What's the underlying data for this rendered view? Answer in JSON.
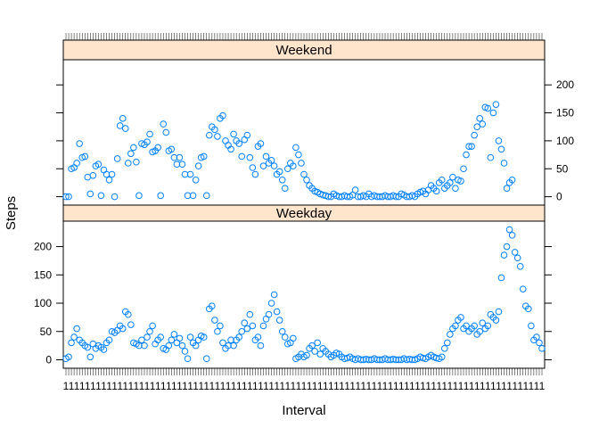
{
  "chart_data": {
    "type": "scatter",
    "xlabel": "Interval",
    "ylabel": "Steps",
    "ylim": [
      -15,
      245
    ],
    "y_ticks": [
      "0",
      "50",
      "100",
      "150",
      "200"
    ],
    "marker_color": "#0080ff",
    "strip_color": "#ffe5cc",
    "panels": [
      {
        "name": "Weekend",
        "y_axis_side": "right",
        "samples": [
          [
            0,
            0
          ],
          [
            1,
            0
          ],
          [
            2,
            50
          ],
          [
            3,
            52
          ],
          [
            4,
            60
          ],
          [
            5,
            95
          ],
          [
            6,
            70
          ],
          [
            7,
            72
          ],
          [
            8,
            35
          ],
          [
            9,
            5
          ],
          [
            10,
            38
          ],
          [
            11,
            55
          ],
          [
            12,
            58
          ],
          [
            13,
            2
          ],
          [
            14,
            48
          ],
          [
            15,
            40
          ],
          [
            16,
            30
          ],
          [
            17,
            40
          ],
          [
            18,
            0
          ],
          [
            19,
            68
          ],
          [
            20,
            127
          ],
          [
            21,
            140
          ],
          [
            22,
            122
          ],
          [
            23,
            60
          ],
          [
            24,
            77
          ],
          [
            25,
            88
          ],
          [
            26,
            62
          ],
          [
            27,
            2
          ],
          [
            28,
            95
          ],
          [
            29,
            93
          ],
          [
            30,
            98
          ],
          [
            31,
            112
          ],
          [
            32,
            80
          ],
          [
            33,
            82
          ],
          [
            34,
            88
          ],
          [
            35,
            2
          ],
          [
            36,
            130
          ],
          [
            37,
            115
          ],
          [
            38,
            82
          ],
          [
            39,
            85
          ],
          [
            40,
            70
          ],
          [
            41,
            58
          ],
          [
            42,
            70
          ],
          [
            43,
            58
          ],
          [
            44,
            40
          ],
          [
            45,
            2
          ],
          [
            46,
            40
          ],
          [
            47,
            2
          ],
          [
            48,
            30
          ],
          [
            49,
            55
          ],
          [
            50,
            70
          ],
          [
            51,
            72
          ],
          [
            52,
            2
          ],
          [
            53,
            110
          ],
          [
            54,
            125
          ],
          [
            55,
            120
          ],
          [
            56,
            108
          ],
          [
            57,
            140
          ],
          [
            58,
            145
          ],
          [
            59,
            100
          ],
          [
            60,
            92
          ],
          [
            61,
            85
          ],
          [
            62,
            112
          ],
          [
            63,
            100
          ],
          [
            64,
            95
          ],
          [
            65,
            72
          ],
          [
            66,
            102
          ],
          [
            67,
            110
          ],
          [
            68,
            70
          ],
          [
            69,
            52
          ],
          [
            70,
            40
          ],
          [
            71,
            90
          ],
          [
            72,
            95
          ],
          [
            73,
            55
          ],
          [
            74,
            72
          ],
          [
            75,
            60
          ],
          [
            76,
            65
          ],
          [
            77,
            55
          ],
          [
            78,
            40
          ],
          [
            79,
            45
          ],
          [
            80,
            30
          ],
          [
            81,
            15
          ],
          [
            82,
            50
          ],
          [
            83,
            60
          ],
          [
            84,
            55
          ],
          [
            85,
            88
          ],
          [
            86,
            75
          ],
          [
            87,
            60
          ],
          [
            88,
            40
          ],
          [
            89,
            30
          ],
          [
            90,
            20
          ],
          [
            91,
            15
          ],
          [
            92,
            10
          ],
          [
            93,
            8
          ],
          [
            94,
            5
          ],
          [
            95,
            3
          ],
          [
            96,
            2
          ],
          [
            97,
            0
          ],
          [
            98,
            0
          ],
          [
            99,
            5
          ],
          [
            100,
            2
          ],
          [
            101,
            0
          ],
          [
            102,
            0
          ],
          [
            103,
            2
          ],
          [
            104,
            0
          ],
          [
            105,
            0
          ],
          [
            106,
            3
          ],
          [
            107,
            12
          ],
          [
            108,
            0
          ],
          [
            109,
            0
          ],
          [
            110,
            2
          ],
          [
            111,
            0
          ],
          [
            112,
            5
          ],
          [
            113,
            0
          ],
          [
            114,
            2
          ],
          [
            115,
            0
          ],
          [
            116,
            0
          ],
          [
            117,
            0
          ],
          [
            118,
            2
          ],
          [
            119,
            0
          ],
          [
            120,
            0
          ],
          [
            121,
            2
          ],
          [
            122,
            0
          ],
          [
            123,
            0
          ],
          [
            124,
            5
          ],
          [
            125,
            3
          ],
          [
            126,
            0
          ],
          [
            127,
            0
          ],
          [
            128,
            2
          ],
          [
            129,
            0
          ],
          [
            130,
            5
          ],
          [
            131,
            8
          ],
          [
            132,
            10
          ],
          [
            133,
            5
          ],
          [
            134,
            12
          ],
          [
            135,
            20
          ],
          [
            136,
            15
          ],
          [
            137,
            10
          ],
          [
            138,
            25
          ],
          [
            139,
            30
          ],
          [
            140,
            15
          ],
          [
            141,
            20
          ],
          [
            142,
            25
          ],
          [
            143,
            35
          ],
          [
            144,
            15
          ],
          [
            145,
            30
          ],
          [
            146,
            28
          ],
          [
            147,
            50
          ],
          [
            148,
            75
          ],
          [
            149,
            90
          ],
          [
            150,
            90
          ],
          [
            151,
            110
          ],
          [
            152,
            125
          ],
          [
            153,
            140
          ],
          [
            154,
            130
          ],
          [
            155,
            160
          ],
          [
            156,
            158
          ],
          [
            157,
            70
          ],
          [
            158,
            150
          ],
          [
            159,
            165
          ],
          [
            160,
            100
          ],
          [
            161,
            85
          ],
          [
            162,
            60
          ],
          [
            163,
            15
          ],
          [
            164,
            25
          ],
          [
            165,
            30
          ]
        ]
      },
      {
        "name": "Weekday",
        "y_axis_side": "left",
        "samples": [
          [
            0,
            2
          ],
          [
            1,
            5
          ],
          [
            2,
            30
          ],
          [
            3,
            40
          ],
          [
            4,
            55
          ],
          [
            5,
            35
          ],
          [
            6,
            30
          ],
          [
            7,
            25
          ],
          [
            8,
            22
          ],
          [
            9,
            5
          ],
          [
            10,
            28
          ],
          [
            11,
            20
          ],
          [
            12,
            25
          ],
          [
            13,
            22
          ],
          [
            14,
            18
          ],
          [
            15,
            30
          ],
          [
            16,
            35
          ],
          [
            17,
            50
          ],
          [
            18,
            48
          ],
          [
            19,
            52
          ],
          [
            20,
            60
          ],
          [
            21,
            55
          ],
          [
            22,
            85
          ],
          [
            23,
            80
          ],
          [
            24,
            62
          ],
          [
            25,
            30
          ],
          [
            26,
            28
          ],
          [
            27,
            25
          ],
          [
            28,
            35
          ],
          [
            29,
            25
          ],
          [
            30,
            40
          ],
          [
            31,
            50
          ],
          [
            32,
            60
          ],
          [
            33,
            28
          ],
          [
            34,
            35
          ],
          [
            35,
            40
          ],
          [
            36,
            20
          ],
          [
            37,
            18
          ],
          [
            38,
            25
          ],
          [
            39,
            35
          ],
          [
            40,
            45
          ],
          [
            41,
            30
          ],
          [
            42,
            38
          ],
          [
            43,
            25
          ],
          [
            44,
            15
          ],
          [
            45,
            2
          ],
          [
            46,
            40
          ],
          [
            47,
            30
          ],
          [
            48,
            25
          ],
          [
            49,
            35
          ],
          [
            50,
            42
          ],
          [
            51,
            40
          ],
          [
            52,
            2
          ],
          [
            53,
            90
          ],
          [
            54,
            95
          ],
          [
            55,
            70
          ],
          [
            56,
            50
          ],
          [
            57,
            60
          ],
          [
            58,
            30
          ],
          [
            59,
            20
          ],
          [
            60,
            25
          ],
          [
            61,
            35
          ],
          [
            62,
            25
          ],
          [
            63,
            35
          ],
          [
            64,
            40
          ],
          [
            65,
            50
          ],
          [
            66,
            65
          ],
          [
            67,
            55
          ],
          [
            68,
            80
          ],
          [
            69,
            60
          ],
          [
            70,
            35
          ],
          [
            71,
            40
          ],
          [
            72,
            25
          ],
          [
            73,
            60
          ],
          [
            74,
            72
          ],
          [
            75,
            80
          ],
          [
            76,
            100
          ],
          [
            77,
            115
          ],
          [
            78,
            85
          ],
          [
            79,
            70
          ],
          [
            80,
            50
          ],
          [
            81,
            40
          ],
          [
            82,
            28
          ],
          [
            83,
            30
          ],
          [
            84,
            38
          ],
          [
            85,
            2
          ],
          [
            86,
            5
          ],
          [
            87,
            10
          ],
          [
            88,
            5
          ],
          [
            89,
            8
          ],
          [
            90,
            20
          ],
          [
            91,
            25
          ],
          [
            92,
            15
          ],
          [
            93,
            30
          ],
          [
            94,
            10
          ],
          [
            95,
            20
          ],
          [
            96,
            15
          ],
          [
            97,
            10
          ],
          [
            98,
            5
          ],
          [
            99,
            8
          ],
          [
            100,
            12
          ],
          [
            101,
            10
          ],
          [
            102,
            5
          ],
          [
            103,
            2
          ],
          [
            104,
            3
          ],
          [
            105,
            5
          ],
          [
            106,
            2
          ],
          [
            107,
            0
          ],
          [
            108,
            2
          ],
          [
            109,
            0
          ],
          [
            110,
            0
          ],
          [
            111,
            1
          ],
          [
            112,
            0
          ],
          [
            113,
            0
          ],
          [
            114,
            2
          ],
          [
            115,
            0
          ],
          [
            116,
            0
          ],
          [
            117,
            0
          ],
          [
            118,
            2
          ],
          [
            119,
            0
          ],
          [
            120,
            0
          ],
          [
            121,
            1
          ],
          [
            122,
            0
          ],
          [
            123,
            0
          ],
          [
            124,
            0
          ],
          [
            125,
            2
          ],
          [
            126,
            0
          ],
          [
            127,
            1
          ],
          [
            128,
            0
          ],
          [
            129,
            0
          ],
          [
            130,
            2
          ],
          [
            131,
            5
          ],
          [
            132,
            3
          ],
          [
            133,
            2
          ],
          [
            134,
            5
          ],
          [
            135,
            8
          ],
          [
            136,
            5
          ],
          [
            137,
            3
          ],
          [
            138,
            2
          ],
          [
            139,
            5
          ],
          [
            140,
            20
          ],
          [
            141,
            30
          ],
          [
            142,
            45
          ],
          [
            143,
            55
          ],
          [
            144,
            60
          ],
          [
            145,
            70
          ],
          [
            146,
            75
          ],
          [
            147,
            55
          ],
          [
            148,
            60
          ],
          [
            149,
            50
          ],
          [
            150,
            55
          ],
          [
            151,
            60
          ],
          [
            152,
            45
          ],
          [
            153,
            50
          ],
          [
            154,
            65
          ],
          [
            155,
            55
          ],
          [
            156,
            60
          ],
          [
            157,
            80
          ],
          [
            158,
            75
          ],
          [
            159,
            70
          ],
          [
            160,
            85
          ],
          [
            161,
            145
          ],
          [
            162,
            185
          ],
          [
            163,
            200
          ],
          [
            164,
            230
          ],
          [
            165,
            220
          ],
          [
            166,
            190
          ],
          [
            167,
            180
          ],
          [
            168,
            165
          ],
          [
            169,
            125
          ],
          [
            170,
            95
          ],
          [
            171,
            90
          ],
          [
            172,
            60
          ],
          [
            173,
            35
          ],
          [
            174,
            40
          ],
          [
            175,
            30
          ],
          [
            176,
            20
          ]
        ]
      }
    ]
  }
}
